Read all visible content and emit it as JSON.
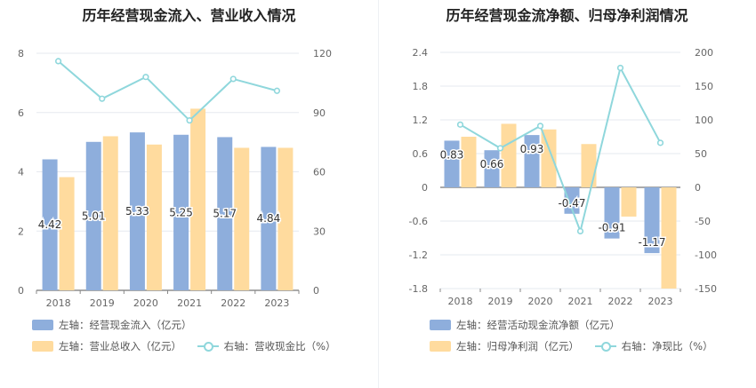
{
  "chart_data": [
    {
      "type": "bar",
      "title": "历年经营现金流入、营业收入情况",
      "categories": [
        "2018",
        "2019",
        "2020",
        "2021",
        "2022",
        "2023"
      ],
      "y_left_ticks": [
        "0",
        "2",
        "4",
        "6",
        "8"
      ],
      "y_right_ticks": [
        "0",
        "30",
        "60",
        "90",
        "120"
      ],
      "ylim_left": [
        0,
        8
      ],
      "ylim_right": [
        0,
        120
      ],
      "series": [
        {
          "name": "左轴：经营现金流入（亿元）",
          "axis": "left",
          "kind": "bar",
          "color": "#8eaedc",
          "values": [
            4.42,
            5.01,
            5.33,
            5.25,
            5.17,
            4.84
          ],
          "labels": [
            "4.42",
            "5.01",
            "5.33",
            "5.25",
            "5.17",
            "4.84"
          ]
        },
        {
          "name": "左轴：营业总收入（亿元）",
          "axis": "left",
          "kind": "bar",
          "color": "#ffdb9e",
          "values": [
            3.82,
            5.2,
            4.92,
            6.13,
            4.81,
            4.81
          ]
        },
        {
          "name": "右轴：营收现金比（%）",
          "axis": "right",
          "kind": "line",
          "color": "#8fd7dc",
          "values": [
            116,
            97,
            108,
            86,
            107,
            101
          ]
        }
      ]
    },
    {
      "type": "bar",
      "title": "历年经营现金流净额、归母净利润情况",
      "categories": [
        "2018",
        "2019",
        "2020",
        "2021",
        "2022",
        "2023"
      ],
      "y_left_ticks": [
        "-1.8",
        "-1.2",
        "-0.6",
        "0",
        "0.6",
        "1.2",
        "1.8",
        "2.4"
      ],
      "y_right_ticks": [
        "-150",
        "-100",
        "-50",
        "0",
        "50",
        "100",
        "150",
        "200"
      ],
      "ylim_left": [
        -1.8,
        2.4
      ],
      "ylim_right": [
        -150,
        200
      ],
      "series": [
        {
          "name": "左轴：经营活动现金流净额（亿元）",
          "axis": "left",
          "kind": "bar",
          "color": "#8eaedc",
          "values": [
            0.83,
            0.66,
            0.93,
            -0.47,
            -0.91,
            -1.17
          ],
          "labels": [
            "0.83",
            "0.66",
            "0.93",
            "-0.47",
            "-0.91",
            "-1.17"
          ]
        },
        {
          "name": "左轴：归母净利润（亿元）",
          "axis": "left",
          "kind": "bar",
          "color": "#ffdb9e",
          "values": [
            0.9,
            1.13,
            1.03,
            0.77,
            -0.52,
            -1.8
          ]
        },
        {
          "name": "右轴：净现比（%）",
          "axis": "right",
          "kind": "line",
          "color": "#8fd7dc",
          "values": [
            93,
            58,
            91,
            -65,
            177,
            66
          ]
        }
      ]
    }
  ]
}
